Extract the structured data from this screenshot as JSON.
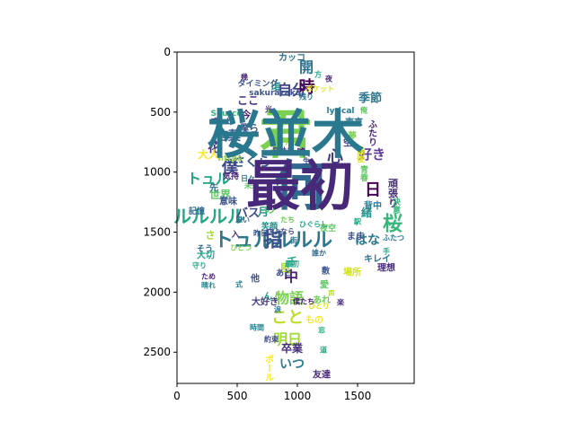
{
  "chart_data": {
    "type": "image",
    "subtype": "wordcloud",
    "x_ticks": [
      0,
      500,
      1000,
      1500
    ],
    "y_ticks": [
      0,
      500,
      1000,
      1500,
      2000,
      2500
    ],
    "x_range": [
      0,
      1970
    ],
    "y_range": [
      0,
      2760
    ],
    "y_inverted": true,
    "grid": false,
    "colormap": "viridis",
    "words": [
      {
        "text": "君",
        "color": "#7ad151"
      },
      {
        "text": "何",
        "color": "#31688e"
      },
      {
        "text": "トュルルルル",
        "color": "#2a788e"
      },
      {
        "text": "ルルルル",
        "color": "#22a884"
      },
      {
        "text": "トュル",
        "color": "#20a486"
      },
      {
        "text": "僕",
        "color": "#3e4989"
      },
      {
        "text": "桜",
        "color": "#35b779"
      },
      {
        "text": "さくら",
        "color": "#38588c"
      },
      {
        "text": "こと",
        "color": "#bddf26"
      },
      {
        "text": "物語",
        "color": "#7ad151"
      },
      {
        "text": "言葉",
        "color": "#38588c"
      },
      {
        "text": "好き",
        "color": "#5e3c99"
      },
      {
        "text": "心",
        "color": "#443983"
      },
      {
        "text": "明日",
        "color": "#9fda3a"
      },
      {
        "text": "いつ",
        "color": "#287c8e"
      },
      {
        "text": "自分",
        "color": "#414487"
      },
      {
        "text": "開",
        "color": "#2c728e"
      },
      {
        "text": "時",
        "color": "#440154"
      },
      {
        "text": "日",
        "color": "#440154"
      },
      {
        "text": "花",
        "color": "#46327e"
      },
      {
        "text": "はな",
        "color": "#2a788e"
      },
      {
        "text": "中",
        "color": "#482374"
      },
      {
        "text": "千",
        "color": "#20a486"
      },
      {
        "text": "卒業",
        "color": "#472d7b"
      },
      {
        "text": "世界",
        "color": "#5ec962"
      },
      {
        "text": "頑張り",
        "color": "#472d7b"
      },
      {
        "text": "季節",
        "color": "#2a788e"
      },
      {
        "text": "大人",
        "color": "#fde725"
      },
      {
        "text": "僕ら",
        "color": "#3b528b"
      },
      {
        "text": "ここ",
        "color": "#46327e"
      },
      {
        "text": "今",
        "color": "#481f70"
      },
      {
        "text": "頃",
        "color": "#21918c"
      },
      {
        "text": "月",
        "color": "#21918c"
      },
      {
        "text": "バス",
        "color": "#3e4989"
      },
      {
        "text": "の",
        "color": "#5ec962"
      },
      {
        "text": "さ",
        "color": "#a2da37"
      },
      {
        "text": "緒",
        "color": "#21918c"
      },
      {
        "text": "風",
        "color": "#b5de2b"
      },
      {
        "text": "もの",
        "color": "#fde725"
      },
      {
        "text": "夢",
        "color": "#7ad151"
      },
      {
        "text": "ん",
        "color": "#20a486"
      },
      {
        "text": "大好き",
        "color": "#443983"
      },
      {
        "text": "あれ",
        "color": "#6ccd5a"
      },
      {
        "text": "友達",
        "color": "#482878"
      },
      {
        "text": "カッコ",
        "color": "#2c728e"
      },
      {
        "text": "タイミング",
        "color": "#3b528b"
      },
      {
        "text": "ポール",
        "color": "#fde725"
      },
      {
        "text": "場所",
        "color": "#d2e21b"
      },
      {
        "text": "https",
        "color": "#95d840"
      },
      {
        "text": "Source",
        "color": "#35b779"
      },
      {
        "text": "sakurazaka",
        "color": "#3b528b"
      },
      {
        "text": "lyrical",
        "color": "#2a788e"
      },
      {
        "text": "東京",
        "color": "#2c728e"
      },
      {
        "text": "ふたり",
        "color": "#482374"
      },
      {
        "text": "キレイ",
        "color": "#2c728e"
      },
      {
        "text": "理想",
        "color": "#472d7b"
      },
      {
        "text": "まま",
        "color": "#3b528b"
      },
      {
        "text": "背中",
        "color": "#2a788e"
      },
      {
        "text": "青春",
        "color": "#5ec962"
      },
      {
        "text": "最後",
        "color": "#dfe318"
      },
      {
        "text": "決意",
        "color": "#35b779"
      },
      {
        "text": "そう",
        "color": "#31688e"
      },
      {
        "text": "気持",
        "color": "#482374"
      },
      {
        "text": "大切",
        "color": "#20a486"
      },
      {
        "text": "笑顔",
        "color": "#21918c"
      },
      {
        "text": "記憶",
        "color": "#31688e"
      },
      {
        "text": "意味",
        "color": "#3b528b"
      },
      {
        "text": "入",
        "color": "#472d7b"
      },
      {
        "text": "あと",
        "color": "#3e4989"
      },
      {
        "text": "他",
        "color": "#3b528b"
      },
      {
        "text": "愛",
        "color": "#5ec962"
      },
      {
        "text": "たち",
        "color": "#6ccd5a"
      },
      {
        "text": "嘘",
        "color": "#472d7b"
      },
      {
        "text": "恋",
        "color": "#7ad151"
      },
      {
        "text": "先",
        "color": "#2c728e"
      },
      {
        "text": "敷",
        "color": "#3b528b"
      },
      {
        "text": "空",
        "color": "#3e4989"
      },
      {
        "text": "夜空",
        "color": "#5ec962"
      },
      {
        "text": "幾",
        "color": "#482878"
      },
      {
        "text": "残り",
        "color": "#2c728e"
      },
      {
        "text": "楽",
        "color": "#472d7b"
      },
      {
        "text": "式",
        "color": "#287c8e"
      },
      {
        "text": "晴れ",
        "color": "#26828e"
      },
      {
        "text": "守り",
        "color": "#20a486"
      },
      {
        "text": "ひとり",
        "color": "#dfe318"
      },
      {
        "text": "日々",
        "color": "#2a788e"
      },
      {
        "text": "ため",
        "color": "#482374"
      },
      {
        "text": "見納め",
        "color": "#472d7b"
      },
      {
        "text": "昨日",
        "color": "#3b528b"
      },
      {
        "text": "ひぐらし",
        "color": "#22a884"
      },
      {
        "text": "ポケット",
        "color": "#dfe318"
      },
      {
        "text": "夜",
        "color": "#482878"
      },
      {
        "text": "方",
        "color": "#20a486"
      },
      {
        "text": "俺",
        "color": "#5ec962"
      },
      {
        "text": "駅",
        "color": "#22a884"
      },
      {
        "text": "街",
        "color": "#2c728e"
      },
      {
        "text": "人生",
        "color": "#3b528b"
      },
      {
        "text": "ひとつ",
        "color": "#7ad151"
      },
      {
        "text": "声",
        "color": "#b5de2b"
      },
      {
        "text": "僕たち",
        "color": "#481f70"
      },
      {
        "text": "最初",
        "color": "#20a486"
      },
      {
        "text": "涙",
        "color": "#2c728e"
      },
      {
        "text": "今日",
        "color": "#95d840"
      },
      {
        "text": "約束",
        "color": "#3e4989"
      },
      {
        "text": "道",
        "color": "#22a884"
      },
      {
        "text": "ずっと",
        "color": "#482878"
      },
      {
        "text": "誰か",
        "color": "#31688e"
      },
      {
        "text": "未来",
        "color": "#5ec962"
      },
      {
        "text": "ふたつ",
        "color": "#2c728e"
      },
      {
        "text": "さよなら",
        "color": "#3e4989"
      },
      {
        "text": "思い",
        "color": "#31688e"
      },
      {
        "text": "時間",
        "color": "#26828e"
      },
      {
        "text": "窓",
        "color": "#35b779"
      },
      {
        "text": "光",
        "color": "#472d7b"
      },
      {
        "text": "手",
        "color": "#22a884"
      },
      {
        "text": "桜並木",
        "color": "#2a788e"
      },
      {
        "text": "最初",
        "color": "#482878"
      },
      {
        "text": "指",
        "color": "#3b528b"
      }
    ]
  }
}
